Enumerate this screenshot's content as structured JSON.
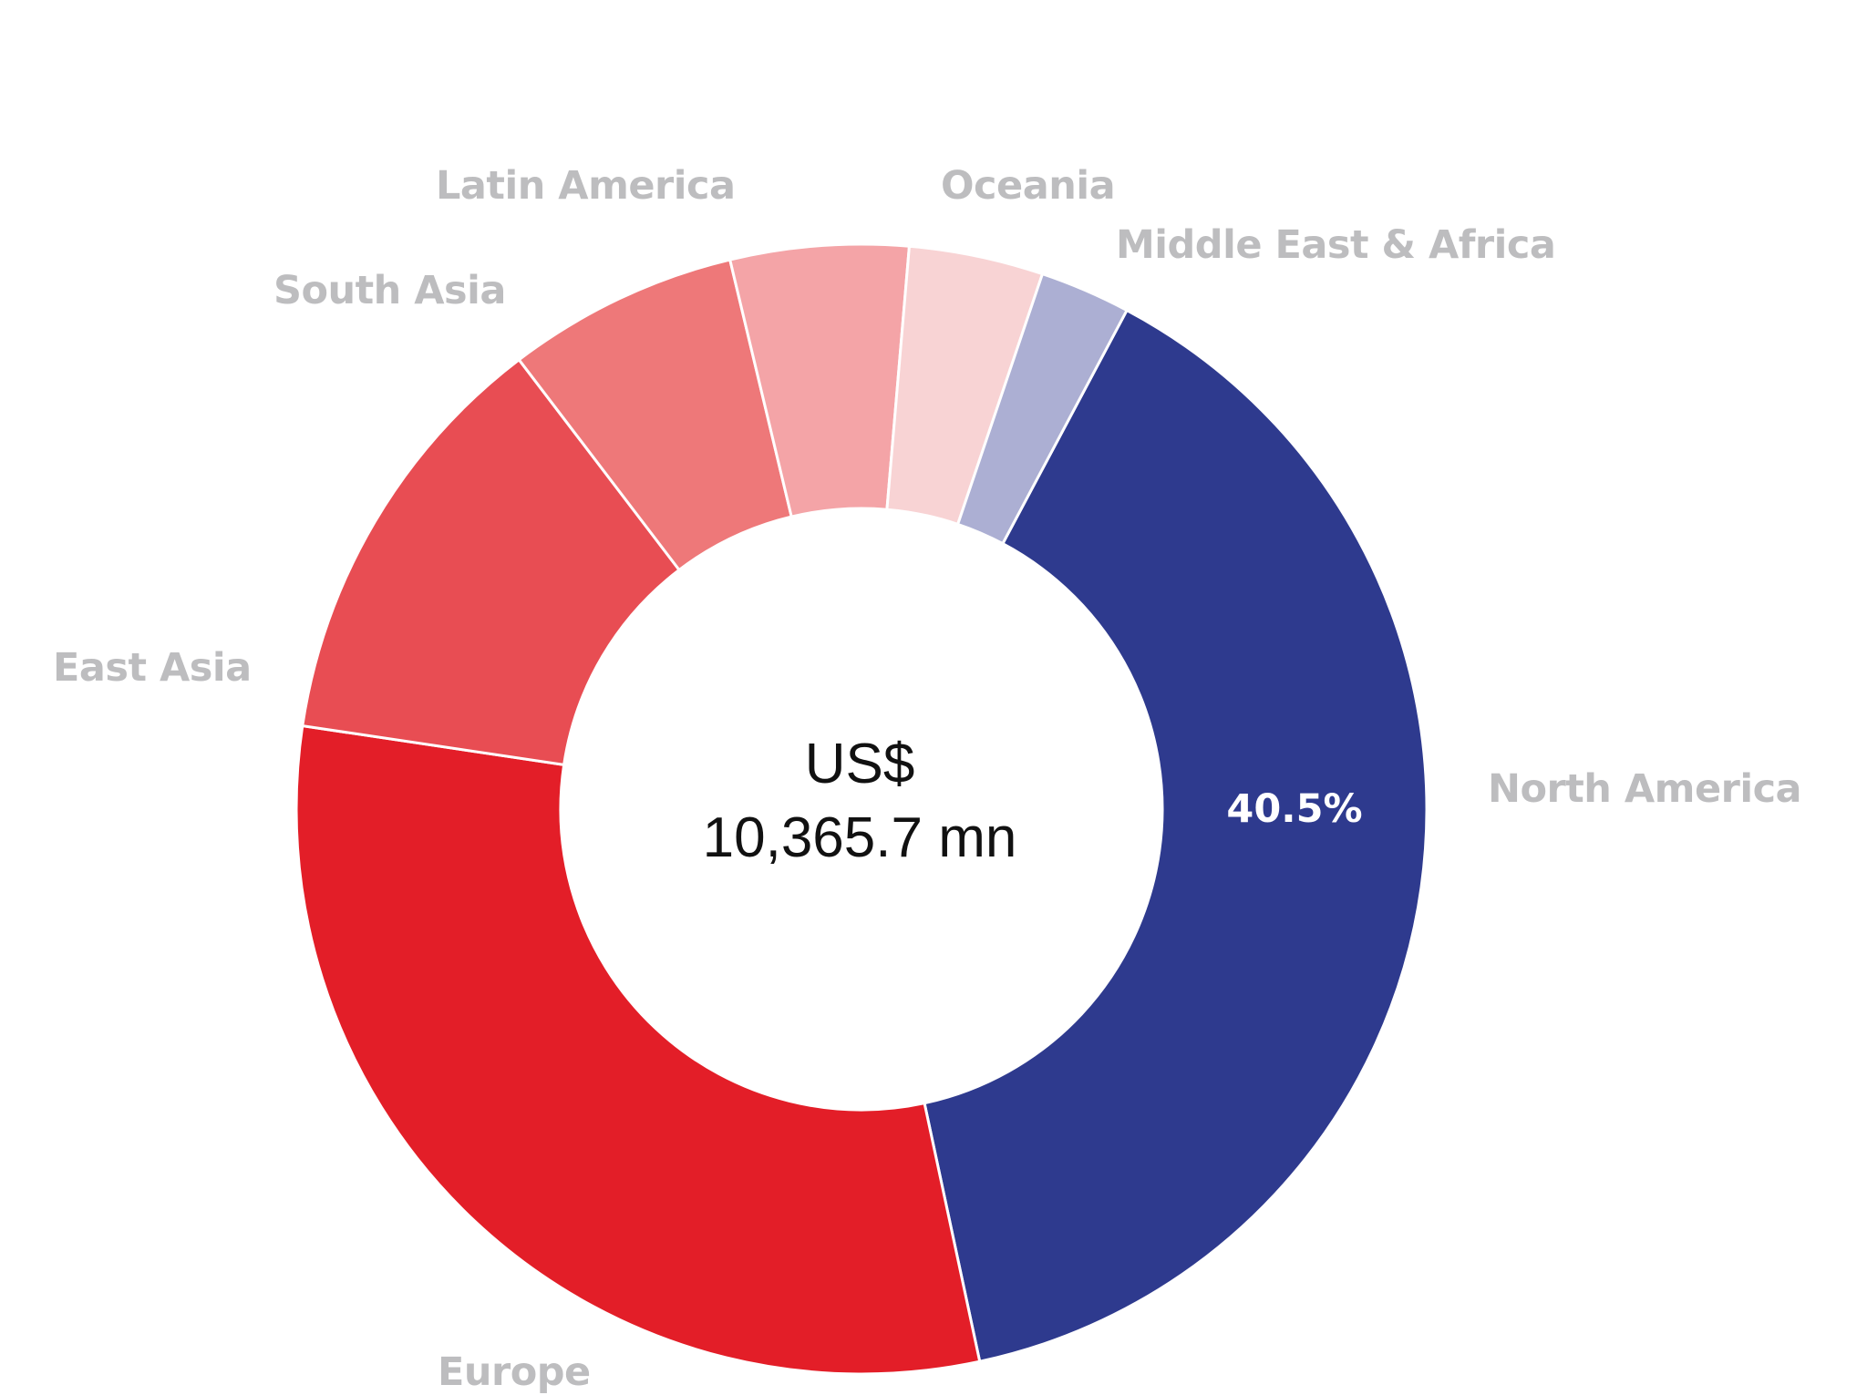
{
  "chart_data": {
    "type": "pie",
    "variant": "donut",
    "center_label": {
      "line1": "US$",
      "line2": "10,365.7 mn"
    },
    "unit": "%",
    "slices": [
      {
        "name": "North America",
        "value": 40.5,
        "value_label": "40.5%",
        "color": "#2e3a8e"
      },
      {
        "name": "Europe",
        "value": 32.0,
        "value_label": "",
        "color": "#e31e28"
      },
      {
        "name": "East Asia",
        "value": 12.8,
        "value_label": "",
        "color": "#e84d53"
      },
      {
        "name": "South Asia",
        "value": 6.9,
        "value_label": "",
        "color": "#ee7879"
      },
      {
        "name": "Latin America",
        "value": 5.3,
        "value_label": "",
        "color": "#f4a4a7"
      },
      {
        "name": "Oceania",
        "value": 4.0,
        "value_label": "",
        "color": "#f8d3d4"
      },
      {
        "name": "Middle East & Africa",
        "value": 2.7,
        "value_label": "",
        "color": "#acafd3"
      }
    ]
  }
}
